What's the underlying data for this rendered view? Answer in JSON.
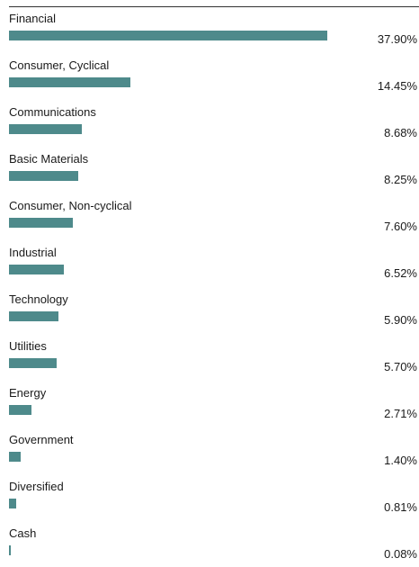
{
  "colors": {
    "bar": "#4e8a8b"
  },
  "chart_data": {
    "type": "bar",
    "orientation": "horizontal",
    "title": "",
    "xlabel": "",
    "ylabel": "",
    "xlim": [
      0,
      40
    ],
    "grid": false,
    "categories": [
      "Financial",
      "Consumer, Cyclical",
      "Communications",
      "Basic Materials",
      "Consumer, Non-cyclical",
      "Industrial",
      "Technology",
      "Utilities",
      "Energy",
      "Government",
      "Diversified",
      "Cash"
    ],
    "values": [
      37.9,
      14.45,
      8.68,
      8.25,
      7.6,
      6.52,
      5.9,
      5.7,
      2.71,
      1.4,
      0.81,
      0.08
    ],
    "value_labels": [
      "37.90%",
      "14.45%",
      "8.68%",
      "8.25%",
      "7.60%",
      "6.52%",
      "5.90%",
      "5.70%",
      "2.71%",
      "1.40%",
      "0.81%",
      "0.08%"
    ]
  }
}
